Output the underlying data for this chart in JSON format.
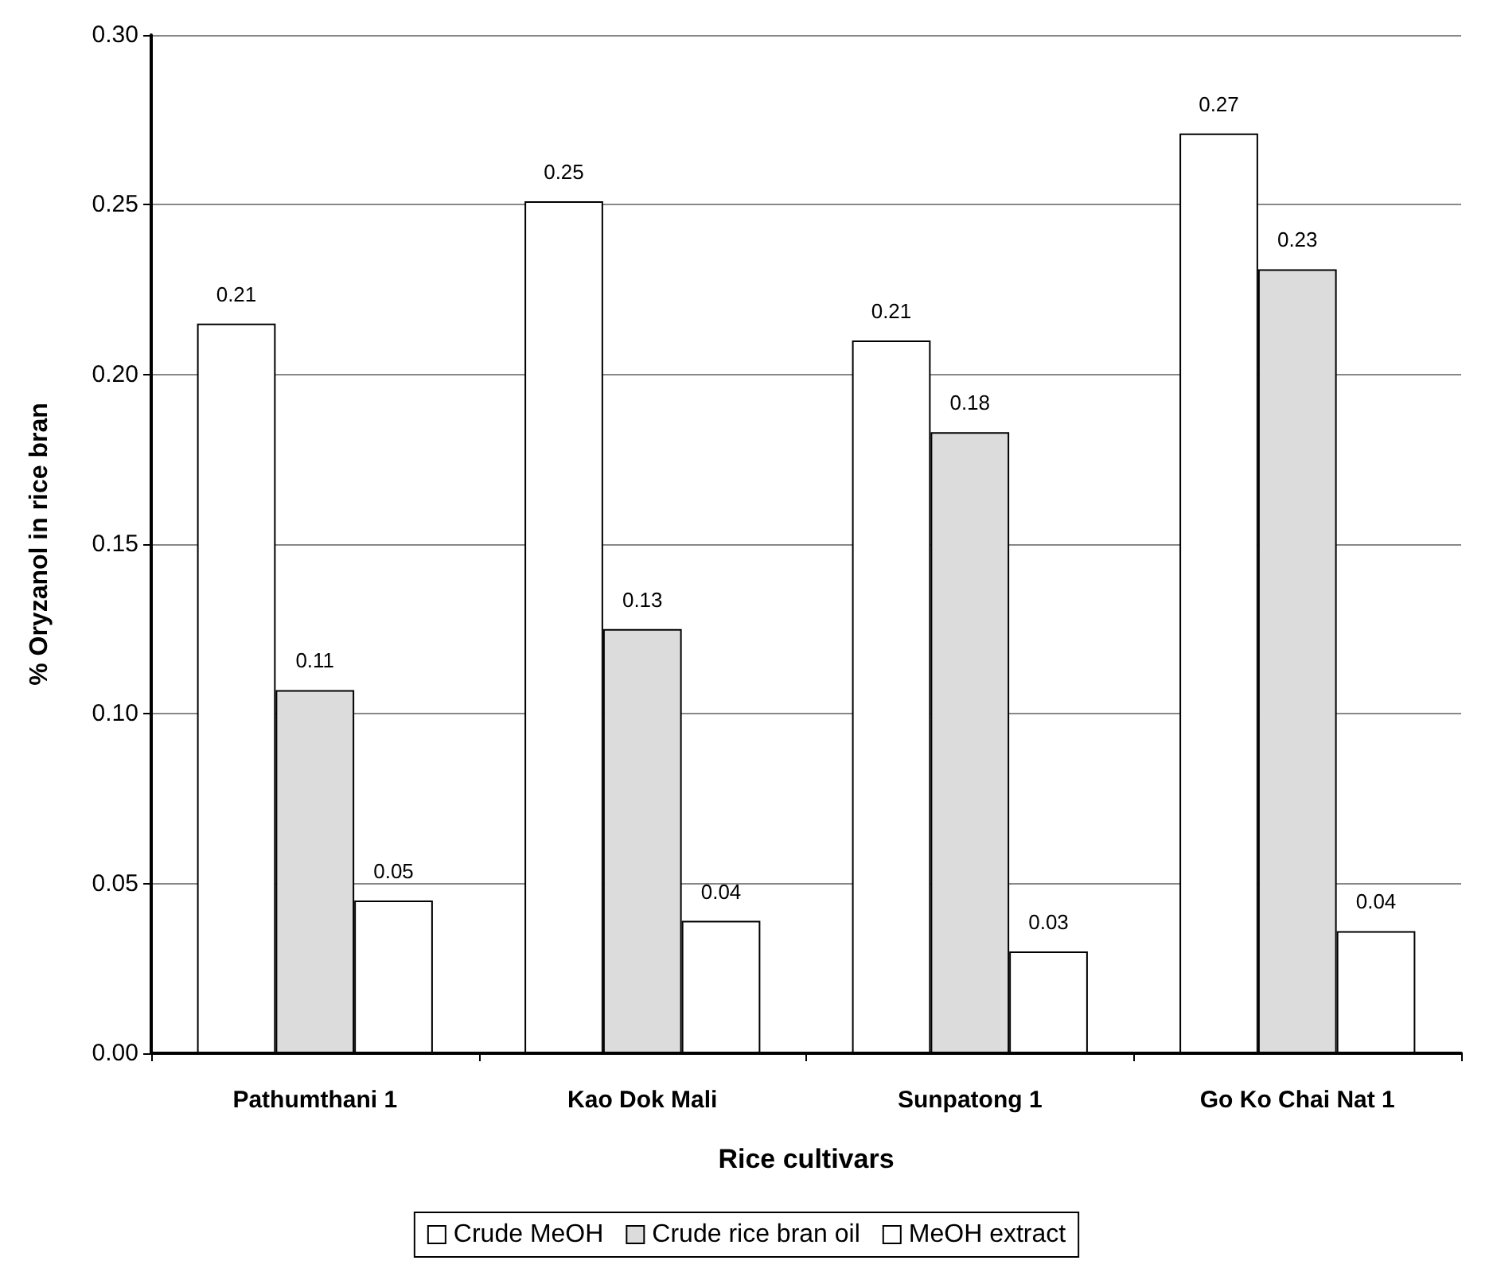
{
  "chart_data": {
    "type": "bar",
    "xlabel": "Rice cultivars",
    "ylabel": "% Oryzanol in rice bran",
    "categories": [
      "Pathumthani 1",
      "Kao Dok Mali",
      "Sunpatong 1",
      "Go Ko Chai Nat 1"
    ],
    "series": [
      {
        "name": "Crude MeOH",
        "color": "#ffffff",
        "values": [
          0.215,
          0.251,
          0.21,
          0.271
        ],
        "value_labels": [
          "0.21",
          "0.25",
          "0.21",
          "0.27"
        ]
      },
      {
        "name": "Crude rice bran oil",
        "color": "#dcdcdc",
        "values": [
          0.107,
          0.125,
          0.183,
          0.231
        ],
        "value_labels": [
          "0.11",
          "0.13",
          "0.18",
          "0.23"
        ]
      },
      {
        "name": "MeOH extract",
        "color": "#ffffff",
        "values": [
          0.045,
          0.039,
          0.03,
          0.036
        ],
        "value_labels": [
          "0.05",
          "0.04",
          "0.03",
          "0.04"
        ]
      }
    ],
    "ylim": [
      0,
      0.3
    ],
    "yticks": [
      {
        "value": 0,
        "label": "0.00"
      },
      {
        "value": 0.05,
        "label": "0.05"
      },
      {
        "value": 0.1,
        "label": "0.10"
      },
      {
        "value": 0.15,
        "label": "0.15"
      },
      {
        "value": 0.2,
        "label": "0.20"
      },
      {
        "value": 0.25,
        "label": "0.25"
      },
      {
        "value": 0.3,
        "label": "0.30"
      }
    ],
    "grid": "y",
    "legend": "bottom"
  }
}
